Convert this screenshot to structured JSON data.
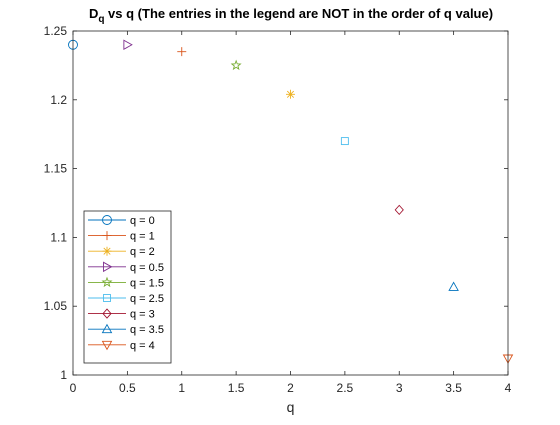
{
  "chart_data": {
    "type": "scatter",
    "title": {
      "main": "D",
      "subscript": "q",
      "rest": " vs q (The entries in the legend are NOT in the order of q value)"
    },
    "xlabel": "q",
    "ylabel": "",
    "xlim": [
      0,
      4
    ],
    "ylim": [
      1,
      1.25
    ],
    "xticks": [
      "0",
      "0.5",
      "1",
      "1.5",
      "2",
      "2.5",
      "3",
      "3.5",
      "4"
    ],
    "yticks": [
      "1",
      "1.05",
      "1.1",
      "1.15",
      "1.2",
      "1.25"
    ],
    "grid": false,
    "legend_position": "bottom-left",
    "series": [
      {
        "name": "q = 0",
        "x": 0,
        "y": 1.24,
        "marker": "circle",
        "color": "#0072BD"
      },
      {
        "name": "q = 1",
        "x": 1,
        "y": 1.235,
        "marker": "plus",
        "color": "#D95319"
      },
      {
        "name": "q = 2",
        "x": 2,
        "y": 1.204,
        "marker": "asterisk",
        "color": "#EDB120"
      },
      {
        "name": "q = 0.5",
        "x": 0.5,
        "y": 1.24,
        "marker": "triangle-right",
        "color": "#7E2F8E"
      },
      {
        "name": "q = 1.5",
        "x": 1.5,
        "y": 1.225,
        "marker": "pentagram",
        "color": "#77AC30"
      },
      {
        "name": "q = 2.5",
        "x": 2.5,
        "y": 1.17,
        "marker": "square",
        "color": "#4DBEEE"
      },
      {
        "name": "q = 3",
        "x": 3,
        "y": 1.12,
        "marker": "diamond",
        "color": "#A2142F"
      },
      {
        "name": "q = 3.5",
        "x": 3.5,
        "y": 1.064,
        "marker": "triangle-up",
        "color": "#0072BD"
      },
      {
        "name": "q = 4",
        "x": 4,
        "y": 1.012,
        "marker": "triangle-down",
        "color": "#D95319"
      }
    ]
  }
}
